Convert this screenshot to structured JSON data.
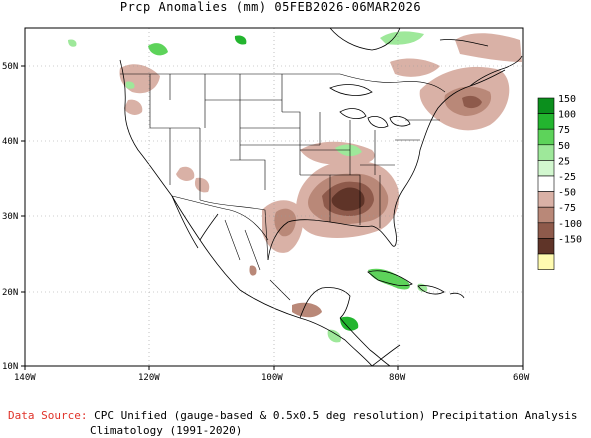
{
  "map": {
    "title": "Prcp Anomalies (mm) 05FEB2026-06MAR2026",
    "lon_labels": [
      "140W",
      "120W",
      "100W",
      "80W",
      "60W"
    ],
    "lat_labels": [
      "50N",
      "40N",
      "30N",
      "20N",
      "10N"
    ],
    "legend": [
      {
        "label": "150",
        "color": "#0b8f1d"
      },
      {
        "label": "100",
        "color": "#23b52f"
      },
      {
        "label": "75",
        "color": "#5dd35a"
      },
      {
        "label": "50",
        "color": "#9ee89a"
      },
      {
        "label": "25",
        "color": "#d2f7cf"
      },
      {
        "label": "-25",
        "color": "#ffffff"
      },
      {
        "label": "-50",
        "color": "#d9b1a6"
      },
      {
        "label": "-75",
        "color": "#b98878"
      },
      {
        "label": "-100",
        "color": "#8e5a4b"
      },
      {
        "label": "-150",
        "color": "#5f3428"
      },
      {
        "label": "",
        "color": "#fffbb0"
      }
    ]
  },
  "source": {
    "label": "Data Source:",
    "line1": "CPC Unified (gauge-based & 0.5x0.5 deg resolution) Precipitation Analysis",
    "line2": "Climatology (1991-2020)"
  }
}
